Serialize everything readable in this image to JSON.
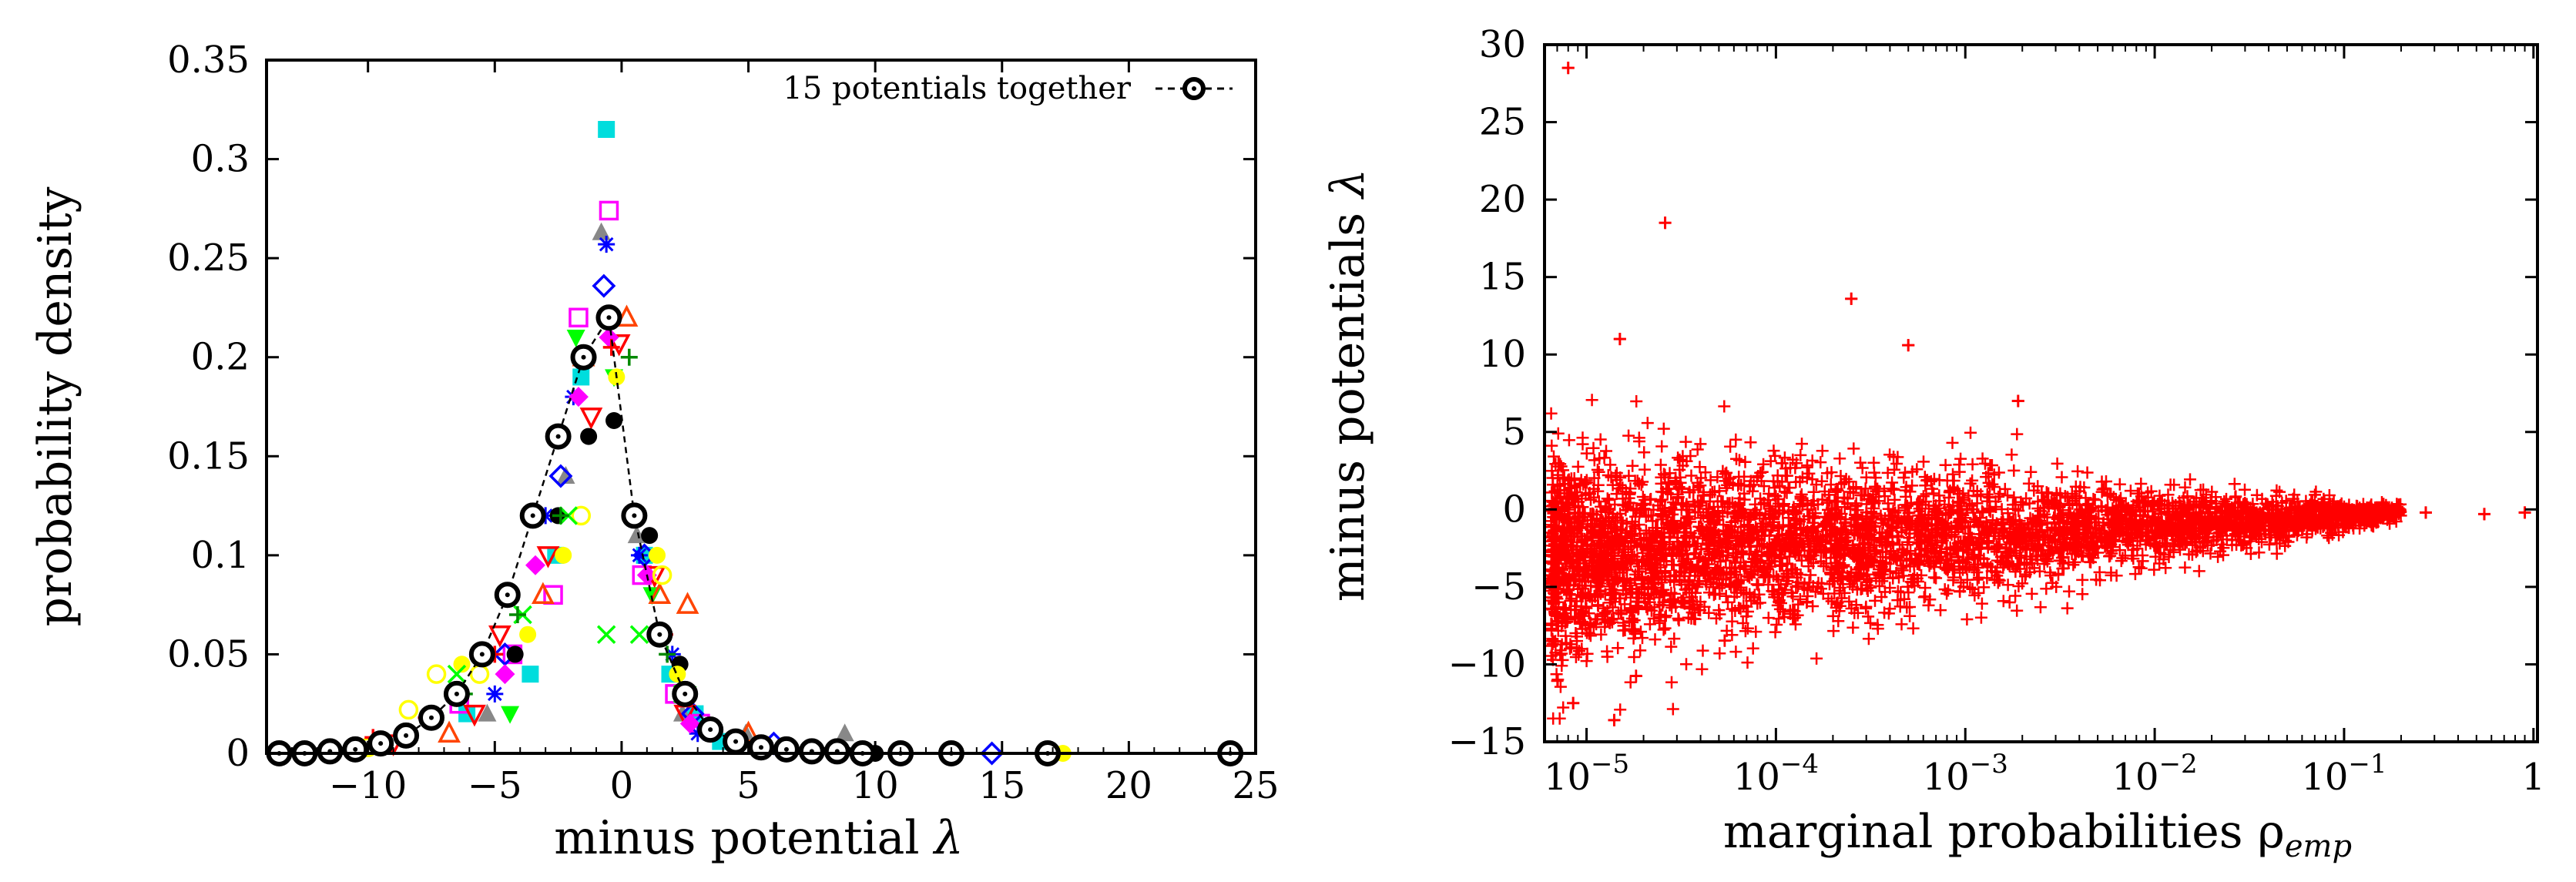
{
  "chart_data": [
    {
      "type": "scatter",
      "title": "",
      "xlabel": "minus potential",
      "xlabel_symbol": "λ",
      "ylabel": "probability density",
      "xlim": [
        -14,
        25
      ],
      "ylim": [
        0,
        0.35
      ],
      "x_tick_labels": [
        "−10",
        "−5",
        "0",
        "5",
        "10",
        "15",
        "20",
        "25"
      ],
      "y_tick_labels": [
        "0",
        "0.05",
        "0.1",
        "0.15",
        "0.2",
        "0.25",
        "0.3",
        "0.35"
      ],
      "legend": {
        "position": "top-right",
        "label": "15 potentials together"
      },
      "combined_series": {
        "name": "15 potentials together",
        "marker": "circle-dot",
        "style": "dashed",
        "x": [
          -13.5,
          -12.5,
          -11.5,
          -10.5,
          -9.5,
          -8.5,
          -7.5,
          -6.5,
          -5.5,
          -4.5,
          -3.5,
          -2.5,
          -1.5,
          -0.5,
          0.5,
          1.5,
          2.5,
          3.5,
          4.5,
          5.5,
          6.5,
          7.5,
          8.5,
          9.5,
          11.0,
          13.0,
          16.8,
          24.0
        ],
        "y": [
          0.0,
          0.0,
          0.001,
          0.002,
          0.005,
          0.009,
          0.018,
          0.03,
          0.05,
          0.08,
          0.12,
          0.16,
          0.2,
          0.22,
          0.12,
          0.06,
          0.03,
          0.012,
          0.006,
          0.003,
          0.002,
          0.001,
          0.001,
          0.0,
          0.0,
          0.0,
          0.0,
          0.0
        ]
      },
      "individual_potentials": [
        {
          "color": "#00dddd",
          "marker": "square-filled",
          "points": [
            [
              -6.1,
              0.02
            ],
            [
              -3.6,
              0.04
            ],
            [
              -2.6,
              0.1
            ],
            [
              -1.6,
              0.19
            ],
            [
              -0.6,
              0.315
            ],
            [
              0.9,
              0.1
            ],
            [
              1.9,
              0.04
            ],
            [
              2.9,
              0.02
            ],
            [
              3.9,
              0.006
            ]
          ]
        },
        {
          "color": "#ff00ff",
          "marker": "square-open",
          "points": [
            [
              -6.4,
              0.025
            ],
            [
              -4.3,
              0.05
            ],
            [
              -2.7,
              0.08
            ],
            [
              -1.7,
              0.22
            ],
            [
              -0.5,
              0.274
            ],
            [
              0.8,
              0.09
            ],
            [
              2.1,
              0.03
            ],
            [
              3.1,
              0.015
            ]
          ]
        },
        {
          "color": "#888888",
          "marker": "triangle-filled",
          "points": [
            [
              -5.3,
              0.02
            ],
            [
              -2.2,
              0.14
            ],
            [
              -0.8,
              0.263
            ],
            [
              0.6,
              0.11
            ],
            [
              2.4,
              0.02
            ],
            [
              4.9,
              0.01
            ],
            [
              8.8,
              0.01
            ]
          ]
        },
        {
          "color": "#0000ff",
          "marker": "asterisk",
          "points": [
            [
              -5.0,
              0.03
            ],
            [
              -3.0,
              0.12
            ],
            [
              -1.9,
              0.18
            ],
            [
              -0.6,
              0.257
            ],
            [
              0.7,
              0.1
            ],
            [
              2.0,
              0.05
            ],
            [
              3.0,
              0.01
            ]
          ]
        },
        {
          "color": "#0000ff",
          "marker": "diamond-open",
          "points": [
            [
              -4.6,
              0.05
            ],
            [
              -2.4,
              0.14
            ],
            [
              -0.7,
              0.236
            ],
            [
              0.9,
              0.1
            ],
            [
              2.8,
              0.02
            ],
            [
              6.0,
              0.005
            ],
            [
              14.6,
              0.0
            ]
          ]
        },
        {
          "color": "#00ff00",
          "marker": "triangle-down-filled",
          "points": [
            [
              -4.4,
              0.02
            ],
            [
              -1.8,
              0.21
            ],
            [
              -0.3,
              0.19
            ],
            [
              1.2,
              0.08
            ],
            [
              2.6,
              0.03
            ]
          ]
        },
        {
          "color": "#ff4400",
          "marker": "triangle-open",
          "points": [
            [
              -6.8,
              0.01
            ],
            [
              -3.1,
              0.08
            ],
            [
              -1.5,
              0.2
            ],
            [
              0.2,
              0.22
            ],
            [
              1.5,
              0.08
            ],
            [
              2.6,
              0.075
            ],
            [
              5.0,
              0.01
            ]
          ]
        },
        {
          "color": "#ff0000",
          "marker": "triangle-down-open",
          "points": [
            [
              -9.0,
              0.005
            ],
            [
              -5.8,
              0.02
            ],
            [
              -4.8,
              0.06
            ],
            [
              -2.9,
              0.1
            ],
            [
              -1.2,
              0.17
            ],
            [
              -0.1,
              0.207
            ],
            [
              1.3,
              0.09
            ],
            [
              2.5,
              0.02
            ]
          ]
        },
        {
          "color": "#ff00ff",
          "marker": "diamond-filled",
          "points": [
            [
              -4.6,
              0.04
            ],
            [
              -3.4,
              0.095
            ],
            [
              -1.7,
              0.18
            ],
            [
              -0.5,
              0.21
            ],
            [
              1.0,
              0.09
            ],
            [
              2.7,
              0.015
            ]
          ]
        },
        {
          "color": "#000000",
          "marker": "circle-filled",
          "points": [
            [
              -4.2,
              0.05
            ],
            [
              -2.5,
              0.12
            ],
            [
              -1.3,
              0.16
            ],
            [
              -0.3,
              0.168
            ],
            [
              1.1,
              0.11
            ],
            [
              2.3,
              0.045
            ],
            [
              10.0,
              0.0
            ]
          ]
        },
        {
          "color": "#ffff00",
          "marker": "circle-filled",
          "points": [
            [
              -6.3,
              0.045
            ],
            [
              -3.7,
              0.06
            ],
            [
              -2.3,
              0.1
            ],
            [
              -0.2,
              0.19
            ],
            [
              1.4,
              0.1
            ],
            [
              2.2,
              0.04
            ],
            [
              17.4,
              0.0
            ]
          ]
        },
        {
          "color": "#ffff00",
          "marker": "circle-open",
          "points": [
            [
              -10.0,
              0.003
            ],
            [
              -8.4,
              0.022
            ],
            [
              -7.3,
              0.04
            ],
            [
              -5.6,
              0.04
            ],
            [
              -1.6,
              0.12
            ],
            [
              1.6,
              0.09
            ]
          ]
        },
        {
          "color": "#00ff00",
          "marker": "cross",
          "points": [
            [
              -6.5,
              0.04
            ],
            [
              -3.9,
              0.07
            ],
            [
              -2.1,
              0.12
            ],
            [
              -0.6,
              0.06
            ],
            [
              0.7,
              0.06
            ],
            [
              2.4,
              0.03
            ]
          ]
        },
        {
          "color": "#008800",
          "marker": "plus",
          "points": [
            [
              -6.2,
              0.03
            ],
            [
              -4.1,
              0.07
            ],
            [
              -2.4,
              0.12
            ],
            [
              0.3,
              0.2
            ],
            [
              1.8,
              0.05
            ]
          ]
        },
        {
          "color": "#ff0000",
          "marker": "plus",
          "points": [
            [
              -9.8,
              0.008
            ],
            [
              -7.7,
              0.018
            ],
            [
              -5.0,
              0.05
            ],
            [
              -0.4,
              0.205
            ],
            [
              1.7,
              0.06
            ]
          ]
        }
      ]
    },
    {
      "type": "scatter",
      "title": "",
      "xlabel": "marginal probabilities ρ",
      "xlabel_subscript": "emp",
      "ylabel": "minus potentials",
      "ylabel_symbol": "λ",
      "xscale": "log",
      "xlim": [
        6e-06,
        1.05
      ],
      "ylim": [
        -15,
        30
      ],
      "x_tick_labels": [
        {
          "base": "10",
          "exp": "−5"
        },
        {
          "base": "10",
          "exp": "−4"
        },
        {
          "base": "10",
          "exp": "−3"
        },
        {
          "base": "10",
          "exp": "−2"
        },
        {
          "base": "10",
          "exp": "−1"
        },
        {
          "base": "1",
          "exp": ""
        }
      ],
      "y_tick_labels": [
        "−15",
        "−10",
        "−5",
        "0",
        "5",
        "10",
        "15",
        "20",
        "25",
        "30"
      ],
      "marker": "plus",
      "color": "#ff0000",
      "n_points_approx": 4500,
      "notable_points": [
        {
          "x": 8e-06,
          "y": 28.5
        },
        {
          "x": 2.6e-05,
          "y": 18.5
        },
        {
          "x": 0.00025,
          "y": 13.6
        },
        {
          "x": 1.5e-05,
          "y": 11.0
        },
        {
          "x": 0.0005,
          "y": 10.6
        },
        {
          "x": 0.0019,
          "y": 7.0
        },
        {
          "x": 0.27,
          "y": -0.2
        },
        {
          "x": 0.55,
          "y": -0.3
        },
        {
          "x": 0.9,
          "y": -0.2
        },
        {
          "x": 1.4e-05,
          "y": -13.6
        },
        {
          "x": 8.5e-06,
          "y": -12.5
        }
      ]
    }
  ]
}
